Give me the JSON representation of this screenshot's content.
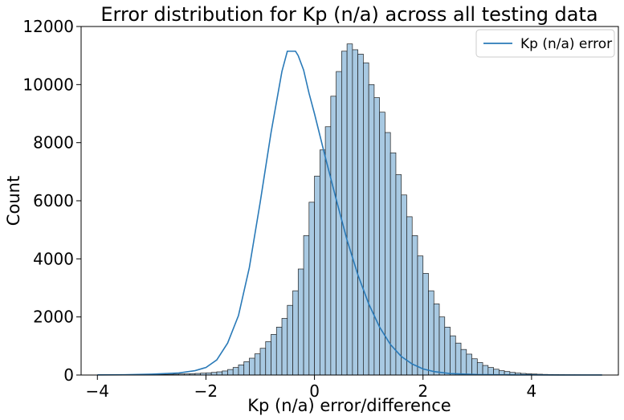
{
  "chart_data": {
    "type": "bar",
    "title": "Error distribution for Kp (n/a) across all testing data",
    "xlabel": "Kp (n/a) error/difference",
    "ylabel": "Count",
    "xlim": [
      -4.3,
      5.6
    ],
    "ylim": [
      0,
      12000
    ],
    "x_ticks": [
      -4,
      -2,
      0,
      2,
      4
    ],
    "x_tick_labels": [
      "−4",
      "−2",
      "0",
      "2",
      "4"
    ],
    "y_ticks": [
      0,
      2000,
      4000,
      6000,
      8000,
      10000,
      12000
    ],
    "y_tick_labels": [
      "0",
      "2000",
      "4000",
      "6000",
      "8000",
      "10000",
      "12000"
    ],
    "grid": false,
    "legend": {
      "position": "top-right",
      "entries": [
        "Kp (n/a) error"
      ]
    },
    "bins": {
      "start": -4.0,
      "width": 0.1
    },
    "series": [
      {
        "name": "Kp (n/a) error",
        "values": [
          2,
          2,
          3,
          3,
          4,
          5,
          6,
          8,
          10,
          12,
          15,
          18,
          20,
          25,
          30,
          35,
          40,
          45,
          55,
          65,
          75,
          90,
          110,
          140,
          190,
          260,
          350,
          460,
          580,
          730,
          920,
          1150,
          1400,
          1650,
          1950,
          2400,
          2900,
          3650,
          4800,
          5950,
          6850,
          7750,
          8550,
          9600,
          10450,
          11150,
          11400,
          11200,
          11050,
          10750,
          10000,
          9550,
          9050,
          8350,
          7650,
          6900,
          6200,
          5450,
          4800,
          4100,
          3500,
          2900,
          2450,
          2000,
          1650,
          1350,
          1100,
          880,
          720,
          560,
          430,
          330,
          260,
          200,
          150,
          120,
          90,
          70,
          55,
          45,
          35,
          28,
          22,
          18,
          14,
          11,
          9,
          7,
          6,
          5,
          4,
          3,
          3,
          2
        ]
      }
    ],
    "kde": {
      "x": [
        -4.0,
        -3.5,
        -3.0,
        -2.5,
        -2.2,
        -2.0,
        -1.8,
        -1.6,
        -1.4,
        -1.2,
        -1.0,
        -0.8,
        -0.6,
        -0.5,
        -0.4,
        -0.35,
        -0.3,
        -0.2,
        -0.1,
        0.0,
        0.2,
        0.4,
        0.6,
        0.8,
        1.0,
        1.2,
        1.4,
        1.6,
        1.8,
        2.0,
        2.2,
        2.5,
        3.0,
        3.5,
        4.0,
        4.5,
        5.0,
        5.3
      ],
      "y": [
        5,
        10,
        30,
        70,
        150,
        260,
        520,
        1100,
        2050,
        3700,
        5950,
        8350,
        10450,
        11150,
        11150,
        11150,
        11000,
        10500,
        9700,
        9000,
        7500,
        6050,
        4650,
        3450,
        2450,
        1650,
        1050,
        640,
        380,
        210,
        120,
        50,
        15,
        7,
        4,
        3,
        2,
        1
      ]
    },
    "colors": {
      "bar_fill": "#a8c9e2",
      "bar_edge": "#1f1f1f",
      "line": "#2a7ab8"
    }
  }
}
